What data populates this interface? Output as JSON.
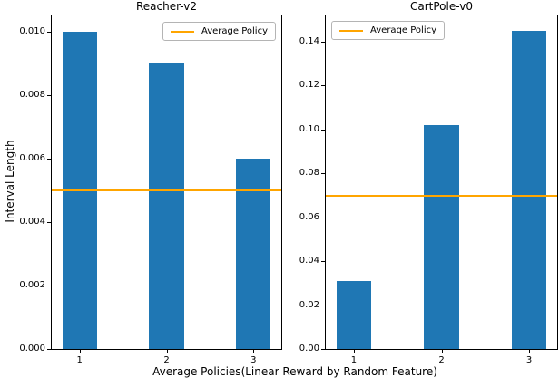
{
  "figure": {
    "xlabel": "Average Policies(Linear Reward by Random Feature)",
    "ylabel": "Interval Length",
    "bar_color": "#1f77b4",
    "line_color": "#ffa500",
    "background": "#ffffff"
  },
  "chart_data": [
    {
      "type": "bar",
      "title": "Reacher-v2",
      "categories": [
        "1",
        "2",
        "3"
      ],
      "values": [
        0.01,
        0.009,
        0.006
      ],
      "reference_line": {
        "label": "Average Policy",
        "value": 0.005,
        "color": "#ffa500"
      },
      "bar_color": "#1f77b4",
      "xlabel": "",
      "ylabel": "Interval Length",
      "ylim": [
        0,
        0.0105
      ],
      "yticks": [
        0.0,
        0.002,
        0.004,
        0.006,
        0.008,
        0.01
      ],
      "ytick_labels": [
        "0.000",
        "0.002",
        "0.004",
        "0.006",
        "0.008",
        "0.010"
      ],
      "grid": false,
      "legend": {
        "label": "Average Policy",
        "position": "upper-right"
      }
    },
    {
      "type": "bar",
      "title": "CartPole-v0",
      "categories": [
        "1",
        "2",
        "3"
      ],
      "values": [
        0.031,
        0.102,
        0.145
      ],
      "reference_line": {
        "label": "Average Policy",
        "value": 0.07,
        "color": "#ffa500"
      },
      "bar_color": "#1f77b4",
      "xlabel": "",
      "ylabel": "",
      "ylim": [
        0,
        0.152
      ],
      "yticks": [
        0.0,
        0.02,
        0.04,
        0.06,
        0.08,
        0.1,
        0.12,
        0.14
      ],
      "ytick_labels": [
        "0.00",
        "0.02",
        "0.04",
        "0.06",
        "0.08",
        "0.10",
        "0.12",
        "0.14"
      ],
      "grid": false,
      "legend": {
        "label": "Average Policy",
        "position": "upper-left"
      }
    }
  ]
}
